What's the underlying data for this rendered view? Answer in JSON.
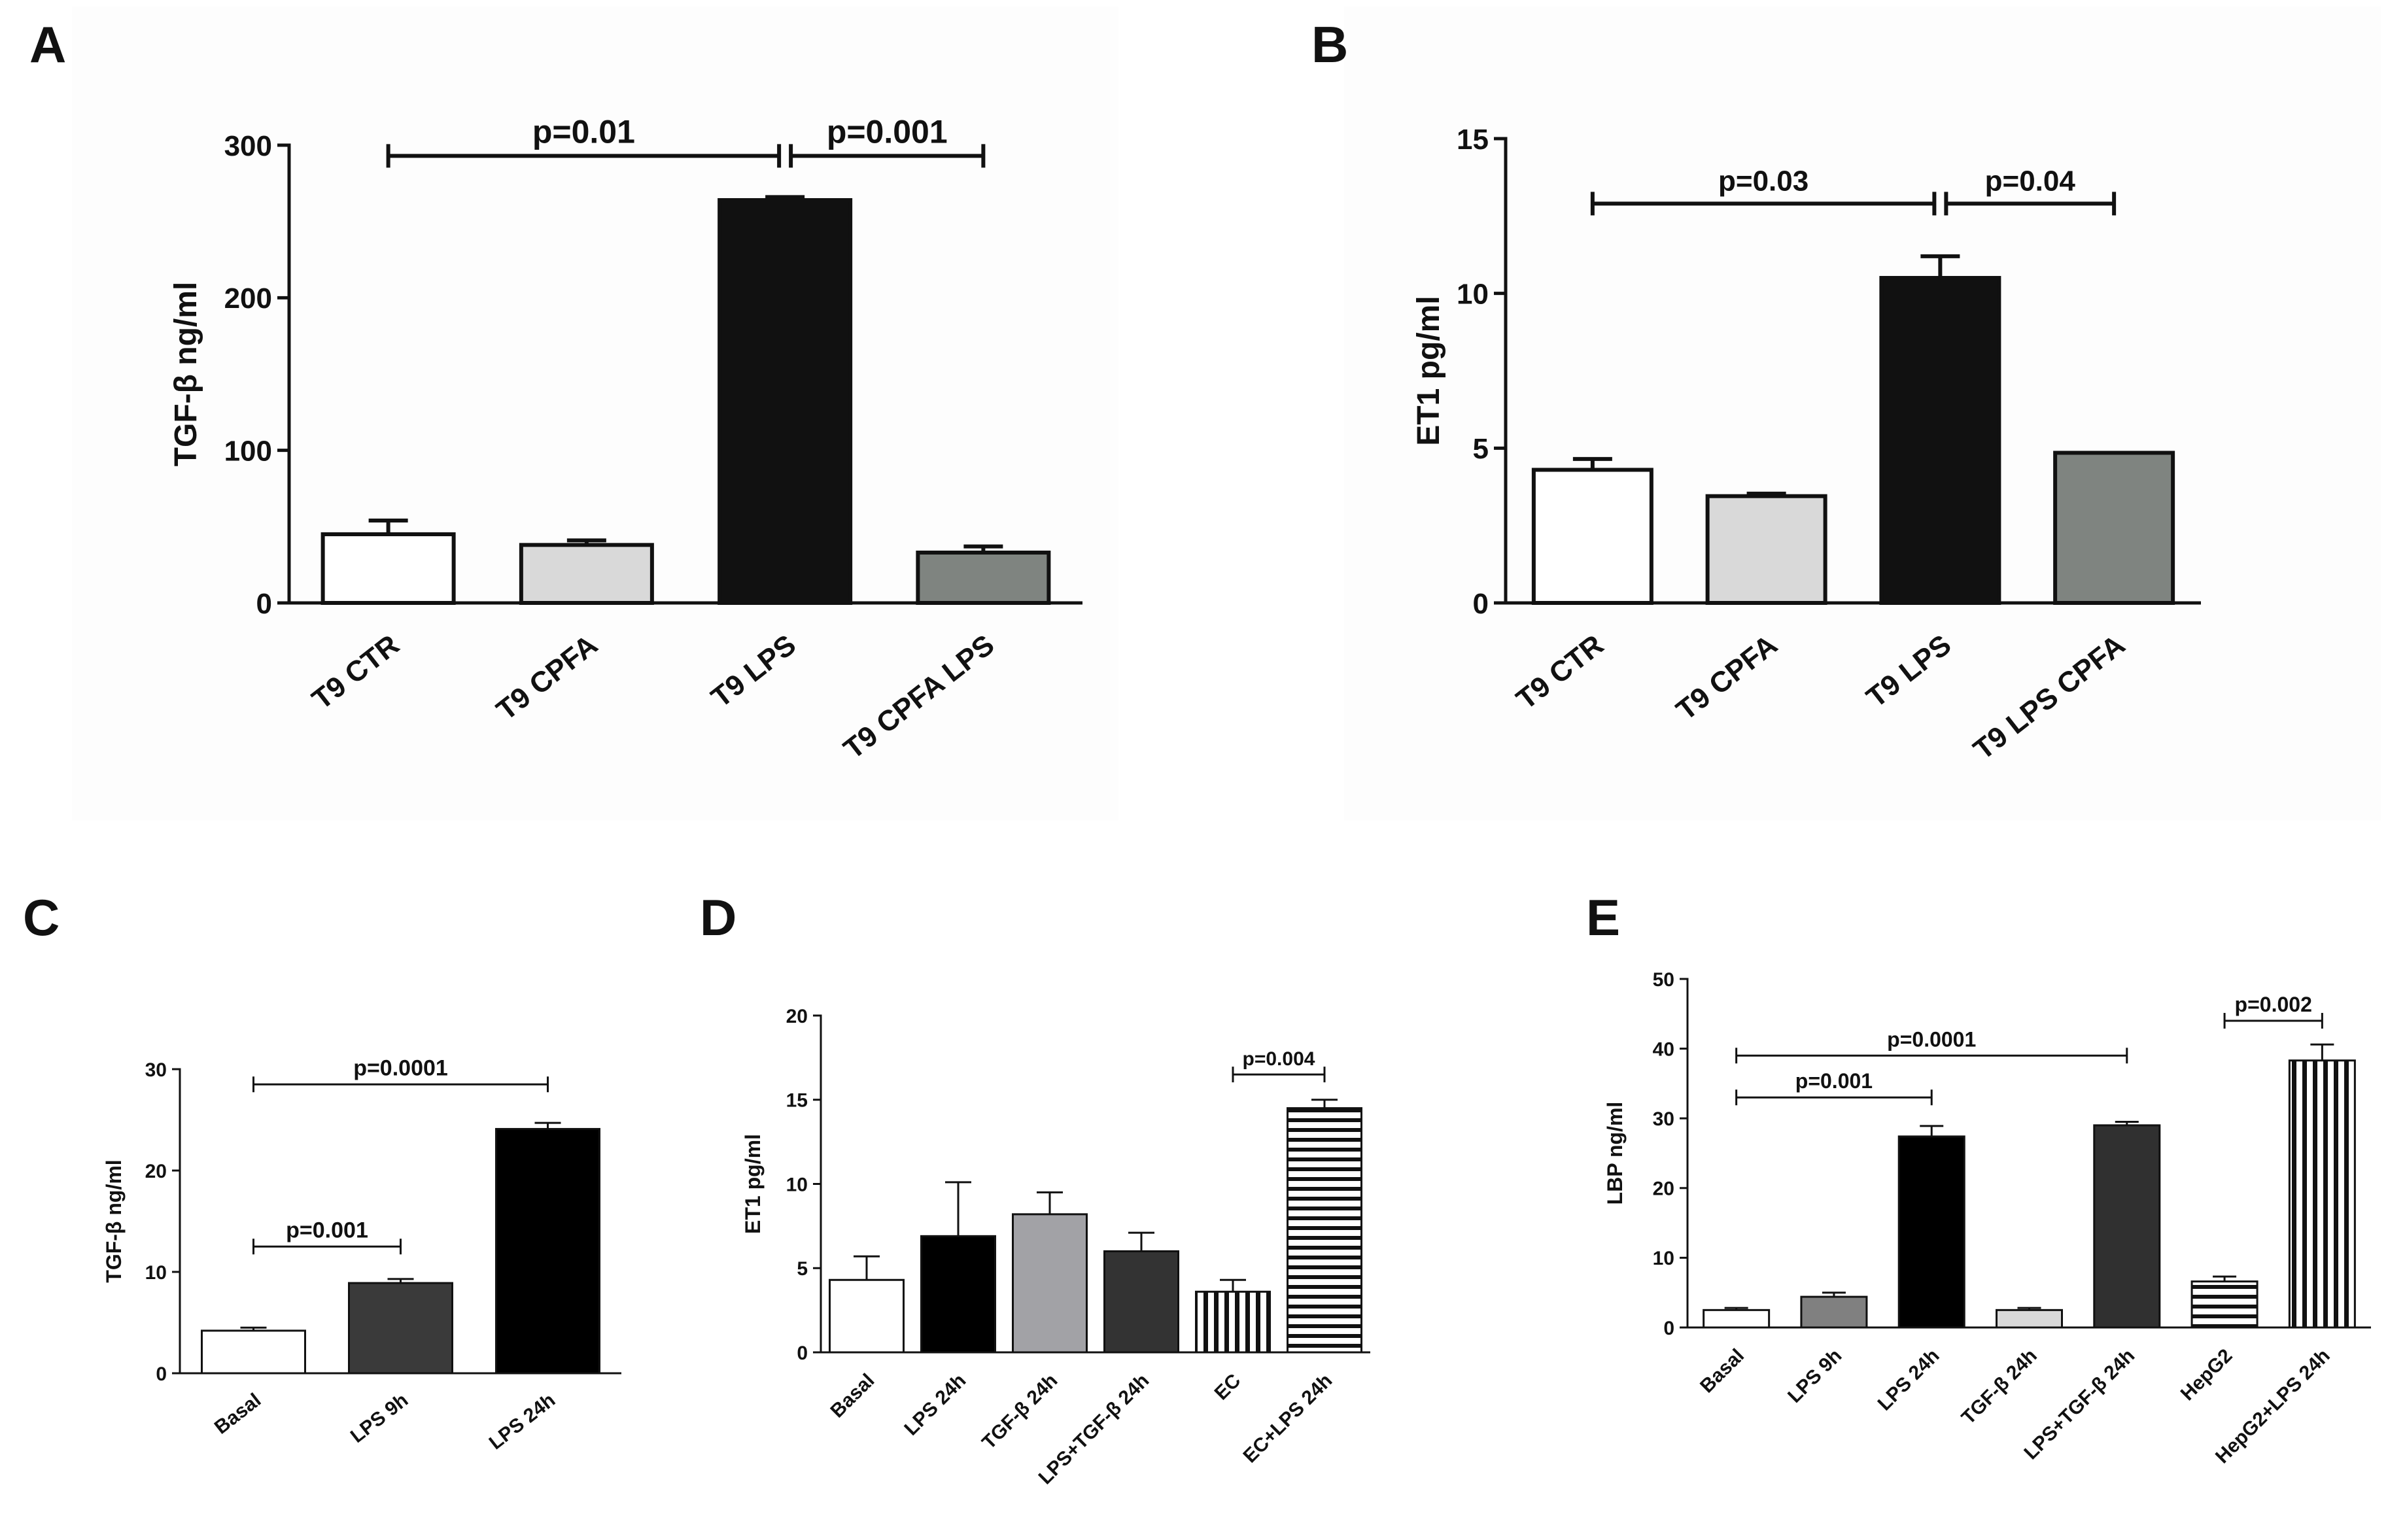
{
  "chart_data": [
    {
      "panel": "A",
      "type": "bar",
      "ylabel": "TGF-β ng/ml",
      "ylim": [
        0,
        300
      ],
      "yticks": [
        0,
        100,
        200,
        300
      ],
      "categories": [
        "T9 CTR",
        "T9 CPFA",
        "T9 LPS",
        "T9 CPFA LPS"
      ],
      "values": [
        45,
        38,
        264,
        33
      ],
      "errors": [
        9,
        3,
        2,
        4
      ],
      "fills": [
        "#ffffff",
        "#d9d9d9",
        "#111111",
        "#7f8480"
      ],
      "patterns": [
        "solid",
        "solid",
        "solid",
        "solid"
      ],
      "significance": [
        {
          "from": 0,
          "to": 2,
          "label": "p=0.01",
          "y": 293
        },
        {
          "from": 2,
          "to": 3,
          "label": "p=0.001",
          "y": 293
        }
      ]
    },
    {
      "panel": "B",
      "type": "bar",
      "ylabel": "ET1 pg/ml",
      "ylim": [
        0,
        15
      ],
      "yticks": [
        0,
        5,
        10,
        15
      ],
      "categories": [
        "T9 CTR",
        "T9 CPFA",
        "T9 LPS",
        "T9 LPS CPFA"
      ],
      "values": [
        4.3,
        3.45,
        10.5,
        4.85
      ],
      "errors": [
        0.35,
        0.08,
        0.7,
        0
      ],
      "fills": [
        "#ffffff",
        "#d9d9d9",
        "#111111",
        "#7f8480"
      ],
      "patterns": [
        "solid",
        "solid",
        "solid",
        "solid"
      ],
      "significance": [
        {
          "from": 0,
          "to": 2,
          "label": "p=0.03",
          "y": 12.9
        },
        {
          "from": 2,
          "to": 3,
          "label": "p=0.04",
          "y": 12.9
        }
      ]
    },
    {
      "panel": "C",
      "type": "bar",
      "ylabel": "TGF-β ng/ml",
      "ylim": [
        0,
        30
      ],
      "yticks": [
        0,
        10,
        20,
        30
      ],
      "categories": [
        "Basal",
        "LPS 9h",
        "LPS 24h"
      ],
      "values": [
        4.2,
        8.9,
        24.1
      ],
      "errors": [
        0.3,
        0.4,
        0.6
      ],
      "fills": [
        "#ffffff",
        "#3a3a3a",
        "#000000"
      ],
      "patterns": [
        "solid",
        "solid",
        "solid"
      ],
      "significance": [
        {
          "from": 0,
          "to": 2,
          "label": "p=0.0001",
          "y": 28.5
        },
        {
          "from": 0,
          "to": 1,
          "label": "p=0.001",
          "y": 12.5
        }
      ]
    },
    {
      "panel": "D",
      "type": "bar",
      "ylabel": "ET1 pg/ml",
      "ylim": [
        0,
        20
      ],
      "yticks": [
        0,
        5,
        10,
        15,
        20
      ],
      "categories": [
        "Basal",
        "LPS 24h",
        "TGF-β 24h",
        "LPS+TGF-β 24h",
        "EC",
        "EC+LPS 24h"
      ],
      "values": [
        4.3,
        6.9,
        8.2,
        6.0,
        3.6,
        14.5
      ],
      "errors": [
        1.4,
        3.2,
        1.3,
        1.1,
        0.7,
        0.5
      ],
      "fills": [
        "#ffffff",
        "#000000",
        "#a2a2a6",
        "#333333",
        "#ffffff",
        "#ffffff"
      ],
      "patterns": [
        "solid",
        "solid",
        "solid",
        "solid",
        "vertical",
        "horizontal"
      ],
      "significance": [
        {
          "from": 4,
          "to": 5,
          "label": "p=0.004",
          "y": 16.5
        }
      ]
    },
    {
      "panel": "E",
      "type": "bar",
      "ylabel": "LBP ng/ml",
      "ylim": [
        0,
        50
      ],
      "yticks": [
        0,
        10,
        20,
        30,
        40,
        50
      ],
      "categories": [
        "Basal",
        "LPS 9h",
        "LPS 24h",
        "TGF-β 24h",
        "LPS+TGF-β 24h",
        "HepG2",
        "HepG2+LPS 24h"
      ],
      "values": [
        2.5,
        4.4,
        27.4,
        2.5,
        29.0,
        6.6,
        38.3
      ],
      "errors": [
        0.3,
        0.6,
        1.5,
        0.3,
        0.5,
        0.7,
        2.3
      ],
      "fills": [
        "#ffffff",
        "#808080",
        "#000000",
        "#d9d9d9",
        "#303030",
        "#ffffff",
        "#ffffff"
      ],
      "patterns": [
        "solid",
        "solid",
        "solid",
        "solid",
        "solid",
        "horizontal",
        "vertical"
      ],
      "significance": [
        {
          "from": 0,
          "to": 2,
          "label": "p=0.001",
          "y": 33
        },
        {
          "from": 0,
          "to": 4,
          "label": "p=0.0001",
          "y": 39
        },
        {
          "from": 5,
          "to": 6,
          "label": "p=0.002",
          "y": 44
        }
      ]
    }
  ]
}
